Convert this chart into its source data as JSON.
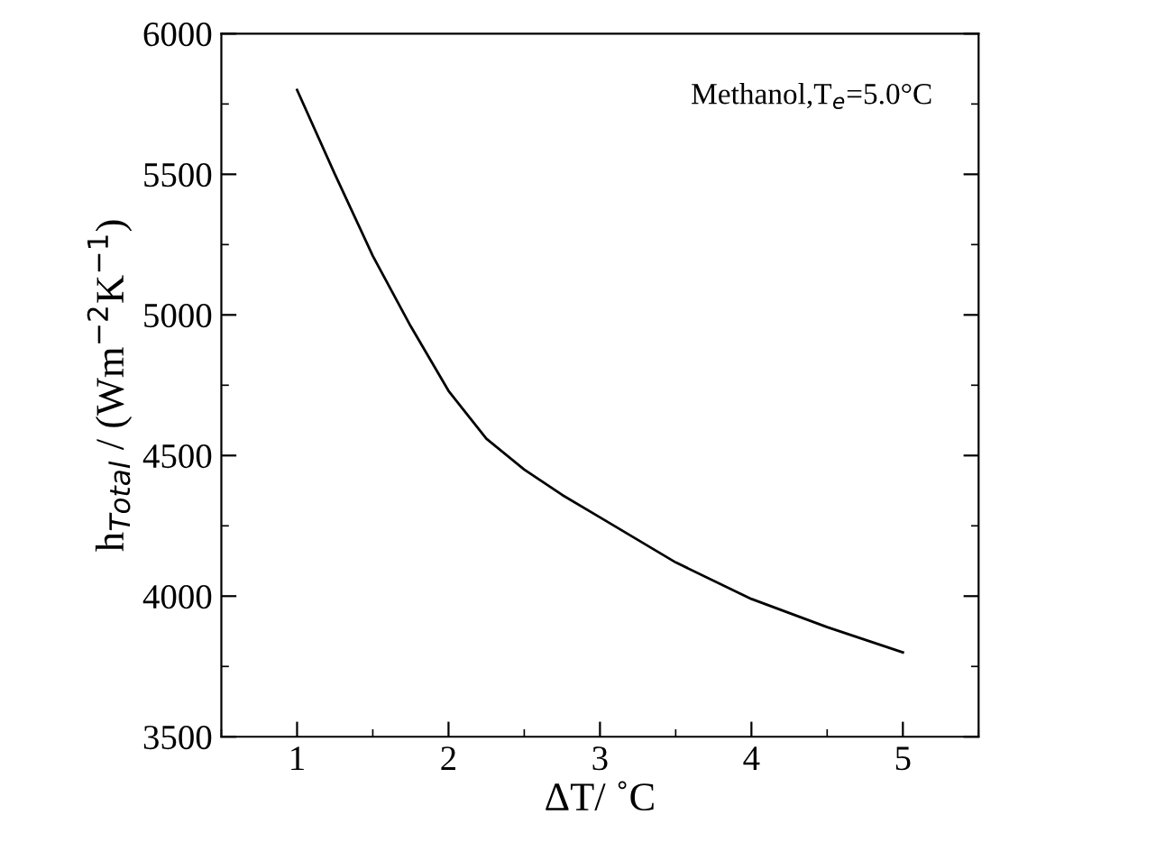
{
  "chart_data": {
    "type": "line",
    "xlabel": "ΔT/ ˚C",
    "ylabel": "h$_{Total}$ / (Wm$^{−2}$K$^{−1}$)",
    "annotations": [
      "Methanol,T$_{e}$=5.0°C"
    ],
    "x": [
      1,
      1.25,
      1.5,
      1.75,
      2,
      2.25,
      2.5,
      2.75,
      3,
      3.5,
      4,
      4.5,
      5
    ],
    "series": [
      {
        "color": "#000000",
        "values": [
          5800,
          5500,
          5210,
          4960,
          4730,
          4560,
          4450,
          4360,
          4280,
          4120,
          3990,
          3890,
          3800
        ]
      }
    ],
    "xlim": [
      0.5,
      5.5
    ],
    "ylim": [
      3500,
      6000
    ],
    "xticks": [
      1,
      2,
      3,
      4,
      5
    ],
    "yticks": [
      3500,
      4000,
      4500,
      5000,
      5500,
      6000
    ],
    "grid": false,
    "legend": false,
    "marker": "none",
    "line_style": "solid"
  }
}
